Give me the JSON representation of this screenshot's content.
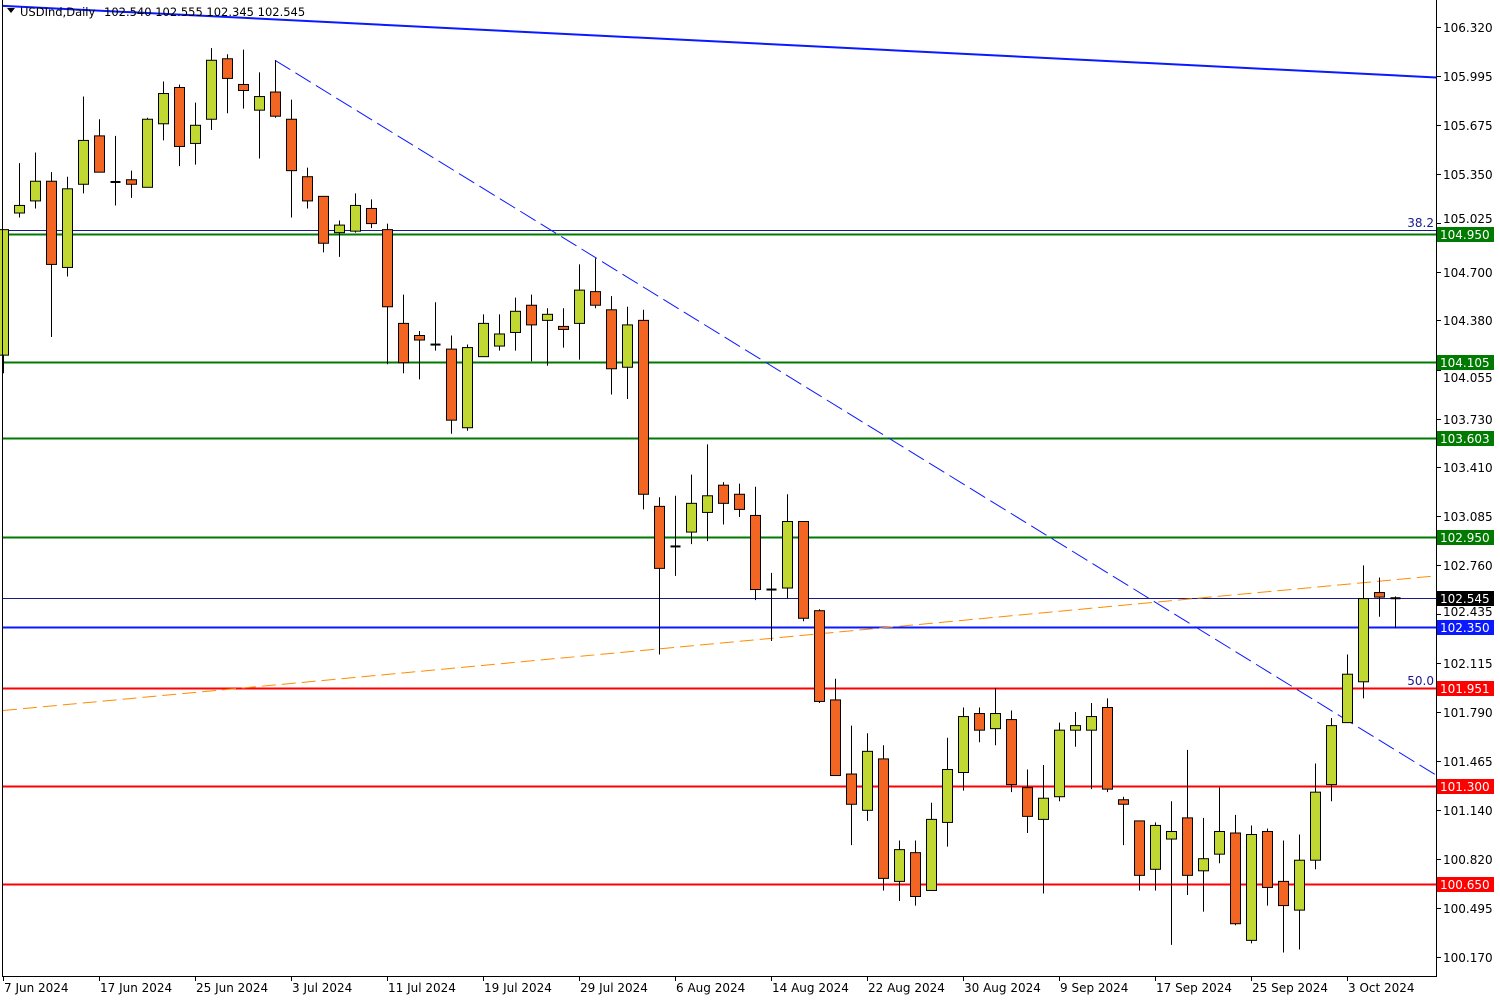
{
  "header": {
    "symbol_timeframe": "USDInd,Daily",
    "ohlc_text": "102.540 102.555 102.345 102.545",
    "menu_icon": "triangle-down-icon"
  },
  "chart_data": {
    "type": "candlestick",
    "symbol": "USDInd",
    "timeframe": "Daily",
    "ylim": [
      100.17,
      106.32
    ],
    "grid": false,
    "colors": {
      "bull": "#c2d832",
      "bear": "#f26522",
      "outline": "#000000",
      "background": "#ffffff"
    },
    "y_ticks": [
      "106.320",
      "105.995",
      "105.675",
      "105.350",
      "105.025",
      "104.700",
      "104.380",
      "104.055",
      "103.730",
      "103.410",
      "103.085",
      "102.760",
      "102.435",
      "102.115",
      "101.790",
      "101.465",
      "101.140",
      "100.820",
      "100.495",
      "100.170"
    ],
    "x_tick_labels": [
      {
        "date": "7 Jun",
        "label": "7 Jun 2024"
      },
      {
        "date": "17 Jun",
        "label": "17 Jun 2024"
      },
      {
        "date": "25 Jun",
        "label": "25 Jun 2024"
      },
      {
        "date": "3 Jul",
        "label": "3 Jul 2024"
      },
      {
        "date": "11 Jul",
        "label": "11 Jul 2024"
      },
      {
        "date": "19 Jul",
        "label": "19 Jul 2024"
      },
      {
        "date": "29 Jul",
        "label": "29 Jul 2024"
      },
      {
        "date": "6 Aug",
        "label": "6 Aug 2024"
      },
      {
        "date": "14 Aug",
        "label": "14 Aug 2024"
      },
      {
        "date": "22 Aug",
        "label": "22 Aug 2024"
      },
      {
        "date": "30 Aug",
        "label": "30 Aug 2024"
      },
      {
        "date": "9 Sep",
        "label": "9 Sep 2024"
      },
      {
        "date": "17 Sep",
        "label": "17 Sep 2024"
      },
      {
        "date": "25 Sep",
        "label": "25 Sep 2024"
      },
      {
        "date": "3 Oct",
        "label": "3 Oct 2024"
      }
    ],
    "candle_fields": [
      "date",
      "open",
      "high",
      "low",
      "close"
    ],
    "candles": [
      [
        "7 Jun",
        104.15,
        104.98,
        104.03,
        104.98
      ],
      [
        "10 Jun",
        105.09,
        105.42,
        105.06,
        105.14
      ],
      [
        "11 Jun",
        105.17,
        105.49,
        105.12,
        105.3
      ],
      [
        "12 Jun",
        105.3,
        105.36,
        104.27,
        104.75
      ],
      [
        "13 Jun",
        104.73,
        105.33,
        104.67,
        105.25
      ],
      [
        "14 Jun",
        105.28,
        105.86,
        105.22,
        105.57
      ],
      [
        "17 Jun",
        105.6,
        105.71,
        105.36,
        105.36
      ],
      [
        "18 Jun",
        105.3,
        105.6,
        105.14,
        105.29
      ],
      [
        "19 Jun",
        105.31,
        105.37,
        105.19,
        105.28
      ],
      [
        "20 Jun",
        105.26,
        105.72,
        105.26,
        105.71
      ],
      [
        "21 Jun",
        105.68,
        105.96,
        105.57,
        105.88
      ],
      [
        "24 Jun",
        105.92,
        105.94,
        105.4,
        105.53
      ],
      [
        "25 Jun",
        105.55,
        105.82,
        105.41,
        105.67
      ],
      [
        "26 Jun",
        105.71,
        106.18,
        105.64,
        106.1
      ],
      [
        "27 Jun",
        106.11,
        106.14,
        105.75,
        105.98
      ],
      [
        "28 Jun",
        105.94,
        106.17,
        105.78,
        105.9
      ],
      [
        "1 Jul",
        105.77,
        106.02,
        105.45,
        105.86
      ],
      [
        "2 Jul",
        105.89,
        106.1,
        105.72,
        105.73
      ],
      [
        "3 Jul",
        105.71,
        105.84,
        105.06,
        105.37
      ],
      [
        "4 Jul",
        105.33,
        105.39,
        105.12,
        105.17
      ],
      [
        "5 Jul",
        105.2,
        105.2,
        104.83,
        104.89
      ],
      [
        "8 Jul",
        104.96,
        105.04,
        104.8,
        105.01
      ],
      [
        "9 Jul",
        104.97,
        105.22,
        104.96,
        105.14
      ],
      [
        "10 Jul",
        105.12,
        105.18,
        104.99,
        105.02
      ],
      [
        "11 Jul",
        104.98,
        105.02,
        104.09,
        104.47
      ],
      [
        "12 Jul",
        104.36,
        104.55,
        104.03,
        104.1
      ],
      [
        "15 Jul",
        104.28,
        104.31,
        103.99,
        104.25
      ],
      [
        "16 Jul",
        104.22,
        104.5,
        104.18,
        104.22
      ],
      [
        "17 Jul",
        104.19,
        104.28,
        103.63,
        103.72
      ],
      [
        "18 Jul",
        103.67,
        104.22,
        103.65,
        104.2
      ],
      [
        "19 Jul",
        104.14,
        104.42,
        104.14,
        104.36
      ],
      [
        "22 Jul",
        104.21,
        104.42,
        104.18,
        104.29
      ],
      [
        "23 Jul",
        104.3,
        104.53,
        104.18,
        104.44
      ],
      [
        "24 Jul",
        104.48,
        104.55,
        104.11,
        104.35
      ],
      [
        "25 Jul",
        104.38,
        104.46,
        104.08,
        104.42
      ],
      [
        "26 Jul",
        104.34,
        104.46,
        104.2,
        104.32
      ],
      [
        "29 Jul",
        104.36,
        104.75,
        104.12,
        104.58
      ],
      [
        "30 Jul",
        104.57,
        104.79,
        104.46,
        104.48
      ],
      [
        "31 Jul",
        104.45,
        104.54,
        103.89,
        104.06
      ],
      [
        "1 Aug",
        104.07,
        104.47,
        103.86,
        104.35
      ],
      [
        "2 Aug",
        104.38,
        104.45,
        103.13,
        103.23
      ],
      [
        "5 Aug",
        103.15,
        103.21,
        102.17,
        102.74
      ],
      [
        "6 Aug",
        102.88,
        103.22,
        102.69,
        102.89
      ],
      [
        "7 Aug",
        102.98,
        103.36,
        102.9,
        103.17
      ],
      [
        "8 Aug",
        103.11,
        103.56,
        102.92,
        103.22
      ],
      [
        "9 Aug",
        103.29,
        103.31,
        103.03,
        103.17
      ],
      [
        "12 Aug",
        103.23,
        103.3,
        103.08,
        103.13
      ],
      [
        "13 Aug",
        103.09,
        103.28,
        102.53,
        102.6
      ],
      [
        "14 Aug",
        102.6,
        102.71,
        102.26,
        102.6
      ],
      [
        "15 Aug",
        102.61,
        103.23,
        102.54,
        103.05
      ],
      [
        "16 Aug",
        103.05,
        103.05,
        102.39,
        102.41
      ],
      [
        "19 Aug",
        102.46,
        102.47,
        101.85,
        101.86
      ],
      [
        "20 Aug",
        101.87,
        102.01,
        101.37,
        101.37
      ],
      [
        "21 Aug",
        101.38,
        101.7,
        100.91,
        101.18
      ],
      [
        "22 Aug",
        101.14,
        101.65,
        101.07,
        101.53
      ],
      [
        "23 Aug",
        101.48,
        101.57,
        100.61,
        100.69
      ],
      [
        "26 Aug",
        100.67,
        100.94,
        100.54,
        100.88
      ],
      [
        "27 Aug",
        100.86,
        100.94,
        100.51,
        100.57
      ],
      [
        "28 Aug",
        100.61,
        101.19,
        100.61,
        101.08
      ],
      [
        "29 Aug",
        101.06,
        101.62,
        100.9,
        101.41
      ],
      [
        "30 Aug",
        101.39,
        101.82,
        101.27,
        101.76
      ],
      [
        "2 Sep",
        101.78,
        101.82,
        101.59,
        101.67
      ],
      [
        "3 Sep",
        101.68,
        101.95,
        101.57,
        101.78
      ],
      [
        "4 Sep",
        101.74,
        101.8,
        101.26,
        101.31
      ],
      [
        "5 Sep",
        101.29,
        101.41,
        100.99,
        101.1
      ],
      [
        "6 Sep",
        101.08,
        101.44,
        100.59,
        101.22
      ],
      [
        "9 Sep",
        101.23,
        101.72,
        101.2,
        101.67
      ],
      [
        "10 Sep",
        101.67,
        101.79,
        101.56,
        101.7
      ],
      [
        "11 Sep",
        101.67,
        101.85,
        101.28,
        101.76
      ],
      [
        "12 Sep",
        101.82,
        101.88,
        101.26,
        101.28
      ],
      [
        "13 Sep",
        101.21,
        101.23,
        100.91,
        101.18
      ],
      [
        "16 Sep",
        101.07,
        101.07,
        100.61,
        100.71
      ],
      [
        "17 Sep",
        100.75,
        101.06,
        100.61,
        101.04
      ],
      [
        "18 Sep",
        100.95,
        101.2,
        100.25,
        101.0
      ],
      [
        "19 Sep",
        101.09,
        101.54,
        100.58,
        100.71
      ],
      [
        "20 Sep",
        100.74,
        101.09,
        100.47,
        100.82
      ],
      [
        "23 Sep",
        100.85,
        101.29,
        100.79,
        101.0
      ],
      [
        "24 Sep",
        100.99,
        101.11,
        100.38,
        100.39
      ],
      [
        "25 Sep",
        100.28,
        101.04,
        100.26,
        100.98
      ],
      [
        "26 Sep",
        101.0,
        101.02,
        100.51,
        100.63
      ],
      [
        "27 Sep",
        100.67,
        100.94,
        100.2,
        100.51
      ],
      [
        "30 Sep",
        100.48,
        100.98,
        100.22,
        100.81
      ],
      [
        "1 Oct",
        100.81,
        101.45,
        100.75,
        101.26
      ],
      [
        "2 Oct",
        101.31,
        101.75,
        101.2,
        101.7
      ],
      [
        "3 Oct",
        101.72,
        102.17,
        101.72,
        102.04
      ],
      [
        "4 Oct",
        101.99,
        102.76,
        101.88,
        102.54
      ],
      [
        "7 Oct",
        102.58,
        102.68,
        102.42,
        102.55
      ],
      [
        "8 Oct",
        102.54,
        102.555,
        102.345,
        102.545
      ]
    ],
    "levels": [
      {
        "price": 104.95,
        "label": "104.950",
        "color": "#007a00",
        "kind": "support-resistance"
      },
      {
        "price": 104.105,
        "label": "104.105",
        "color": "#007a00",
        "kind": "support-resistance"
      },
      {
        "price": 103.603,
        "label": "103.603",
        "color": "#007a00",
        "kind": "support-resistance"
      },
      {
        "price": 102.95,
        "label": "102.950",
        "color": "#007a00",
        "kind": "support-resistance"
      },
      {
        "price": 102.545,
        "label": "102.545",
        "color": "#000000",
        "kind": "bid"
      },
      {
        "price": 102.35,
        "label": "102.350",
        "color": "#0a19ff",
        "kind": "support-resistance"
      },
      {
        "price": 101.951,
        "label": "101.951",
        "color": "#ff0000",
        "kind": "support-resistance"
      },
      {
        "price": 101.3,
        "label": "101.300",
        "color": "#ff0000",
        "kind": "support-resistance"
      },
      {
        "price": 100.65,
        "label": "100.650",
        "color": "#ff0000",
        "kind": "support-resistance"
      }
    ],
    "fibonacci_levels": [
      {
        "label": "38.2",
        "price": 104.975
      },
      {
        "label": "50.0",
        "price": 101.951
      }
    ],
    "trendlines": [
      {
        "from": [
          "7 Jun",
          106.46
        ],
        "to": [
          "8 Oct",
          106.0
        ],
        "color": "#0a19ff",
        "style": "solid"
      },
      {
        "from": [
          "2 Jul",
          106.1
        ],
        "to": [
          "8 Oct",
          101.54
        ],
        "color": "#0a19ff",
        "style": "dashed"
      },
      {
        "from": [
          "7 Jun",
          101.8
        ],
        "to": [
          "8 Oct",
          102.665
        ],
        "color": "#ff8c00",
        "style": "dashed"
      }
    ]
  }
}
